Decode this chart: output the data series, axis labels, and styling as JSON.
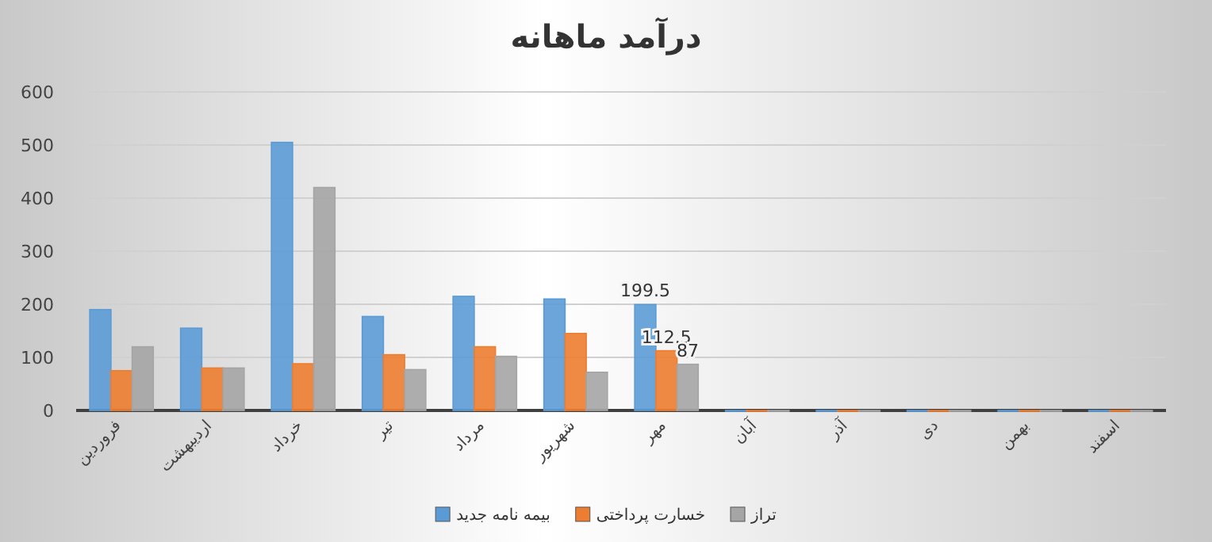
{
  "chart_data": {
    "type": "bar",
    "title": "درآمد ماهانه",
    "categories": [
      "فروردین",
      "اردیبهشت",
      "خرداد",
      "تیر",
      "مرداد",
      "شهریور",
      "مهر",
      "آبان",
      "آذر",
      "دی",
      "بهمن",
      "اسفند"
    ],
    "series": [
      {
        "name": "بیمه نامه جدید",
        "color": "#5b9bd5",
        "values": [
          190,
          155,
          505,
          177,
          215,
          210,
          199.5,
          0,
          0,
          0,
          0,
          0
        ],
        "value_labels": [
          null,
          null,
          null,
          null,
          null,
          null,
          "199.5",
          null,
          null,
          null,
          null,
          null
        ]
      },
      {
        "name": "خسارت پرداختی",
        "color": "#ed7d31",
        "values": [
          75,
          80,
          88,
          105,
          120,
          145,
          112.5,
          0,
          0,
          0,
          0,
          0
        ],
        "value_labels": [
          null,
          null,
          null,
          null,
          null,
          null,
          "112.5",
          null,
          null,
          null,
          null,
          null
        ]
      },
      {
        "name": "تراز",
        "color": "#a5a5a5",
        "values": [
          120,
          80,
          420,
          77,
          102,
          72,
          87,
          0,
          0,
          0,
          0,
          0
        ],
        "value_labels": [
          null,
          null,
          null,
          null,
          null,
          null,
          "87",
          null,
          null,
          null,
          null,
          null
        ]
      }
    ],
    "ylim": [
      0,
      600
    ],
    "yticks": [
      0,
      100,
      200,
      300,
      400,
      500,
      600
    ],
    "grid": "y",
    "legend": "bottom"
  }
}
